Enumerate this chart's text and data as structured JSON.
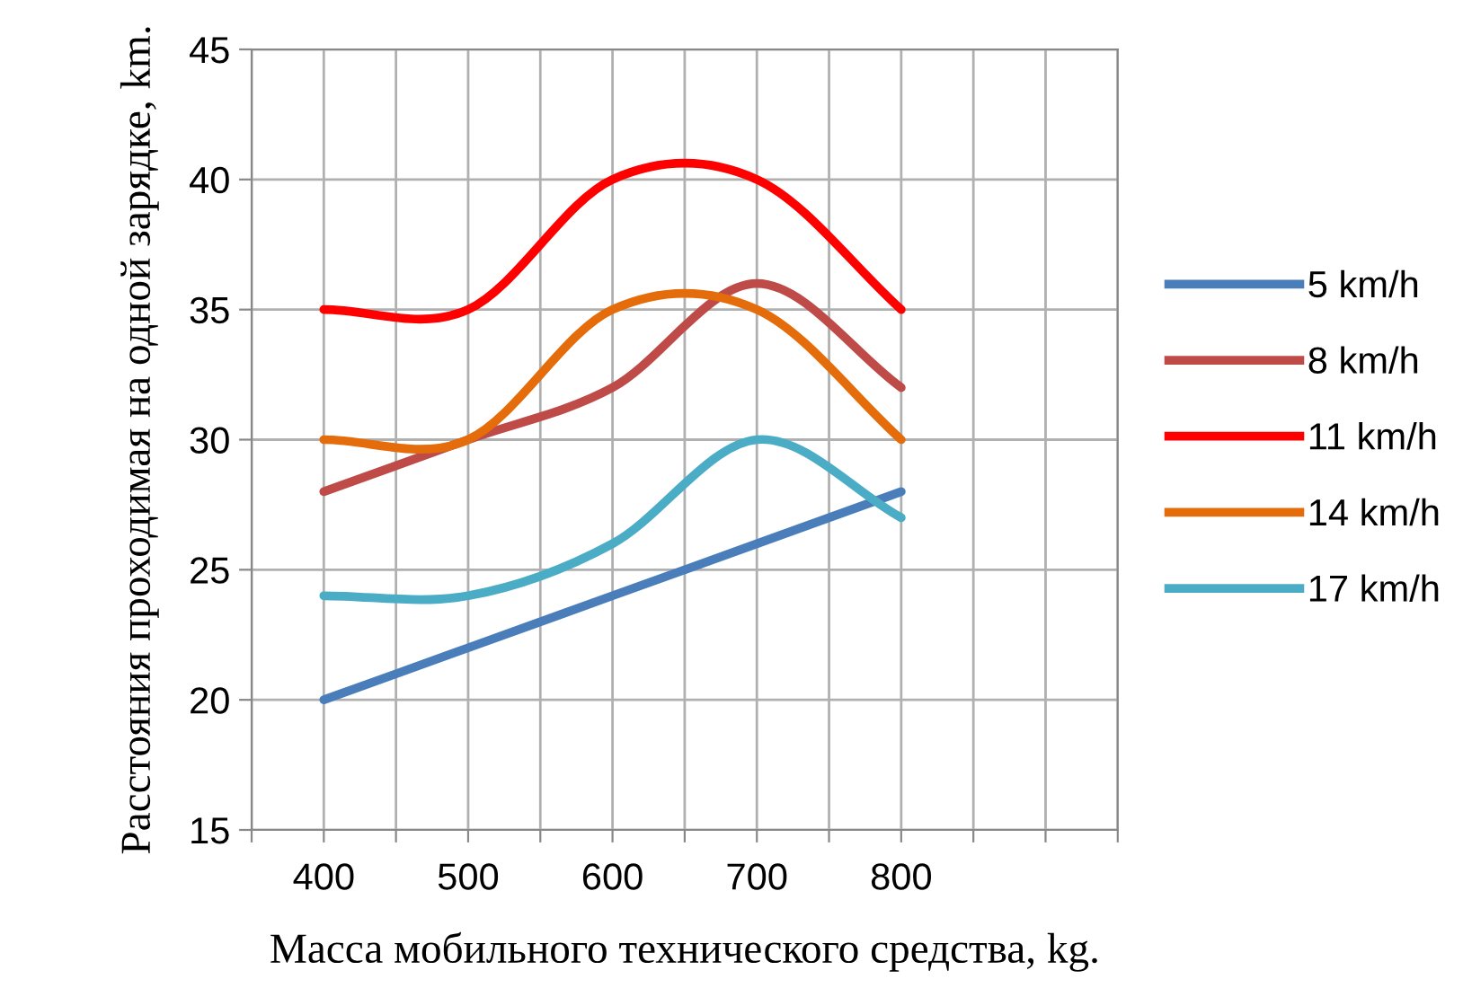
{
  "chart_data": {
    "type": "line",
    "xlabel": "Масса мобильного технического средства, kg.",
    "ylabel": "Расстояния проходимая на одной зарядке, km.",
    "x": [
      400,
      500,
      600,
      700,
      800
    ],
    "series": [
      {
        "name": "5 km/h",
        "color": "#4a7ebb",
        "values": [
          20,
          22,
          24,
          26,
          28
        ]
      },
      {
        "name": "8 km/h",
        "color": "#be4b48",
        "values": [
          28,
          30,
          32,
          36,
          32
        ]
      },
      {
        "name": "11 km/h",
        "color": "#ff0000",
        "values": [
          35,
          35,
          40,
          40,
          35
        ]
      },
      {
        "name": "14 km/h",
        "color": "#e46c0a",
        "values": [
          30,
          30,
          35,
          35,
          30
        ]
      },
      {
        "name": "17 km/h",
        "color": "#4bacc6",
        "values": [
          24,
          24,
          26,
          30,
          27
        ]
      }
    ],
    "xlim": [
      350,
      950
    ],
    "xticks": [
      {
        "value": 350,
        "label": null
      },
      400,
      {
        "value": 450,
        "label": null
      },
      500,
      {
        "value": 550,
        "label": null
      },
      600,
      {
        "value": 650,
        "label": null
      },
      700,
      {
        "value": 750,
        "label": null
      },
      800,
      {
        "value": 850,
        "label": null
      },
      {
        "value": 900,
        "label": null
      },
      {
        "value": 950,
        "label": null
      }
    ],
    "ylim": [
      15,
      45
    ],
    "yticks": [
      15,
      20,
      25,
      30,
      35,
      40,
      45
    ],
    "grid": true,
    "legend": "right",
    "marker": "none",
    "line_style": "solid"
  }
}
